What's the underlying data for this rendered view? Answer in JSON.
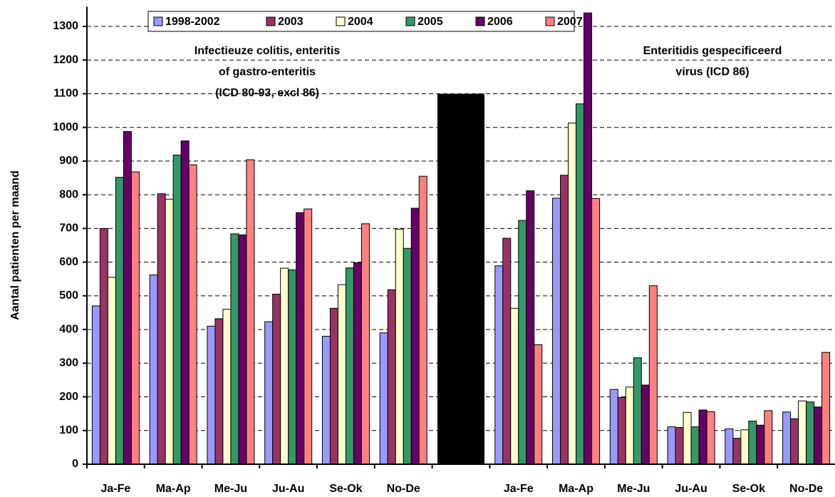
{
  "chart_data": {
    "type": "bar",
    "y_label": "Aantal patienten per maand",
    "categories": [
      "Ja-Fe",
      "Ma-Ap",
      "Me-Ju",
      "Ju-Au",
      "Se-Ok",
      "No-De",
      null,
      "Ja-Fe",
      "Ma-Ap",
      "Me-Ju",
      "Ju-Au",
      "Se-Ok",
      "No-De"
    ],
    "series": [
      {
        "name": "1998-2002",
        "color": "#9999ff",
        "values": [
          470,
          562,
          410,
          423,
          380,
          390,
          null,
          589,
          790,
          222,
          111,
          105,
          155
        ]
      },
      {
        "name": "2003",
        "color": "#993366",
        "values": [
          700,
          803,
          432,
          505,
          463,
          518,
          null,
          671,
          858,
          198,
          109,
          77,
          135
        ]
      },
      {
        "name": "2004",
        "color": "#ffffcc",
        "values": [
          555,
          787,
          460,
          582,
          533,
          698,
          null,
          463,
          1013,
          229,
          154,
          102,
          188
        ]
      },
      {
        "name": "2005",
        "color": "#339966",
        "values": [
          852,
          918,
          684,
          577,
          583,
          641,
          null,
          724,
          1070,
          316,
          111,
          128,
          185
        ]
      },
      {
        "name": "2006",
        "color": "#660066",
        "values": [
          988,
          960,
          681,
          747,
          598,
          760,
          null,
          812,
          1340,
          235,
          161,
          116,
          170
        ]
      },
      {
        "name": "2007",
        "color": "#ff8080",
        "values": [
          868,
          889,
          904,
          758,
          714,
          855,
          null,
          355,
          789,
          530,
          156,
          159,
          332
        ]
      }
    ],
    "divider": {
      "index": 6,
      "value": 1100,
      "color": "#000000"
    },
    "annotations": [
      {
        "lines": [
          "Infectieuze colitis, enteritis",
          "of gastro-enteritis",
          "(ICD 80-93, excl 86)"
        ]
      },
      {
        "lines": [
          "Enteritidis gespecificeerd",
          "virus (ICD 86)"
        ]
      }
    ],
    "ylim": [
      0,
      1350
    ],
    "yticks": [
      0,
      100,
      200,
      300,
      400,
      500,
      600,
      700,
      800,
      900,
      1000,
      1100,
      1200,
      1300
    ],
    "grid": true
  }
}
